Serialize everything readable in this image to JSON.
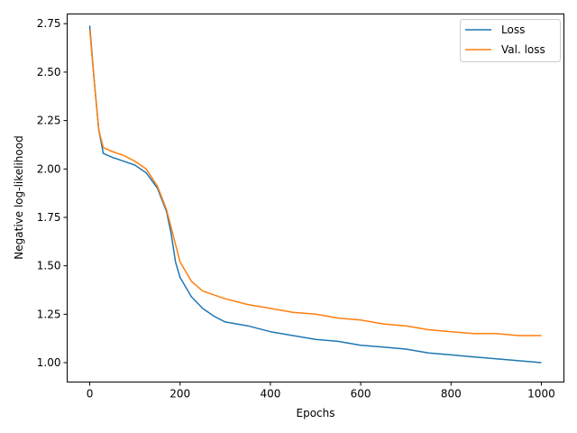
{
  "chart_data": {
    "type": "line",
    "title": "",
    "xlabel": "Epochs",
    "ylabel": "Negative log-likelihood",
    "xlim": [
      -50,
      1050
    ],
    "ylim": [
      0.9,
      2.8
    ],
    "xticks": [
      0,
      200,
      400,
      600,
      800,
      1000
    ],
    "xtick_labels": [
      "0",
      "200",
      "400",
      "600",
      "800",
      "1000"
    ],
    "yticks": [
      1.0,
      1.25,
      1.5,
      1.75,
      2.0,
      2.25,
      2.5,
      2.75
    ],
    "ytick_labels": [
      "1.00",
      "1.25",
      "1.50",
      "1.75",
      "2.00",
      "2.25",
      "2.50",
      "2.75"
    ],
    "grid": false,
    "legend_position": "top-right",
    "series": [
      {
        "name": "Loss",
        "color": "#1f77b4",
        "x": [
          0,
          10,
          20,
          30,
          50,
          75,
          100,
          125,
          150,
          170,
          180,
          190,
          200,
          225,
          250,
          275,
          300,
          350,
          400,
          450,
          500,
          550,
          600,
          650,
          700,
          750,
          800,
          850,
          900,
          950,
          1000
        ],
        "y": [
          2.74,
          2.45,
          2.2,
          2.08,
          2.06,
          2.04,
          2.02,
          1.98,
          1.9,
          1.78,
          1.67,
          1.52,
          1.44,
          1.34,
          1.28,
          1.24,
          1.21,
          1.19,
          1.16,
          1.14,
          1.12,
          1.11,
          1.09,
          1.08,
          1.07,
          1.05,
          1.04,
          1.03,
          1.02,
          1.01,
          1.0
        ]
      },
      {
        "name": "Val. loss",
        "color": "#ff7f0e",
        "x": [
          0,
          10,
          20,
          30,
          50,
          75,
          100,
          125,
          150,
          170,
          180,
          190,
          200,
          225,
          250,
          275,
          300,
          350,
          400,
          450,
          500,
          550,
          600,
          650,
          700,
          750,
          800,
          850,
          900,
          950,
          1000
        ],
        "y": [
          2.72,
          2.45,
          2.2,
          2.11,
          2.09,
          2.07,
          2.04,
          2.0,
          1.91,
          1.79,
          1.7,
          1.61,
          1.52,
          1.42,
          1.37,
          1.35,
          1.33,
          1.3,
          1.28,
          1.26,
          1.25,
          1.23,
          1.22,
          1.2,
          1.19,
          1.17,
          1.16,
          1.15,
          1.15,
          1.14,
          1.14
        ]
      }
    ]
  }
}
